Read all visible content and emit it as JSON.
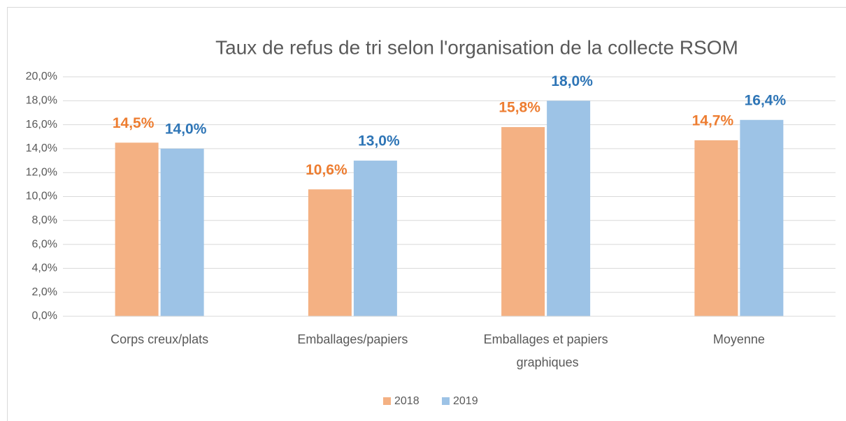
{
  "chart_data": {
    "type": "bar",
    "title": "Taux de refus de tri selon l'organisation de la collecte RSOM",
    "categories": [
      "Corps creux/plats",
      "Emballages/papiers",
      "Emballages et papiers graphiques",
      "Moyenne"
    ],
    "series": [
      {
        "name": "2018",
        "color": "#f4b183",
        "label_color": "#ed7d31",
        "values": [
          14.5,
          10.6,
          15.8,
          14.7
        ],
        "value_labels": [
          "14,5%",
          "10,6%",
          "15,8%",
          "14,7%"
        ]
      },
      {
        "name": "2019",
        "color": "#9dc3e6",
        "label_color": "#2e75b6",
        "values": [
          14.0,
          13.0,
          18.0,
          16.4
        ],
        "value_labels": [
          "14,0%",
          "13,0%",
          "18,0%",
          "16,4%"
        ]
      }
    ],
    "ylim": [
      0,
      20
    ],
    "yticks": [
      {
        "value": 0,
        "label": "0,0%"
      },
      {
        "value": 2,
        "label": "2,0%"
      },
      {
        "value": 4,
        "label": "4,0%"
      },
      {
        "value": 6,
        "label": "6,0%"
      },
      {
        "value": 8,
        "label": "8,0%"
      },
      {
        "value": 10,
        "label": "10,0%"
      },
      {
        "value": 12,
        "label": "12,0%"
      },
      {
        "value": 14,
        "label": "14,0%"
      },
      {
        "value": 16,
        "label": "16,0%"
      },
      {
        "value": 18,
        "label": "18,0%"
      },
      {
        "value": 20,
        "label": "20,0%"
      }
    ],
    "grid": true,
    "legend": "bottom"
  }
}
